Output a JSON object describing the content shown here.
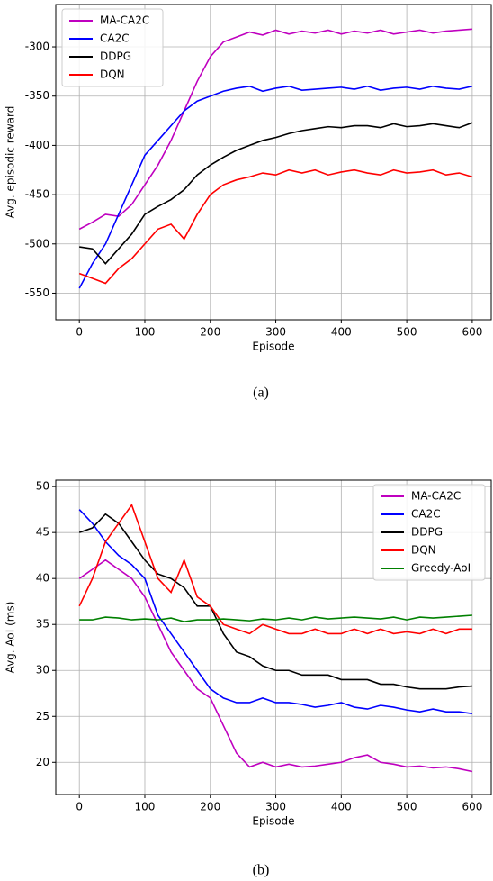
{
  "chart_data": [
    {
      "type": "line",
      "caption": "(a)",
      "x_label": "Episode",
      "y_label": "Avg. episodic reward",
      "x": [
        0,
        20,
        40,
        60,
        80,
        100,
        120,
        140,
        160,
        180,
        200,
        220,
        240,
        260,
        280,
        300,
        320,
        340,
        360,
        380,
        400,
        420,
        440,
        460,
        480,
        500,
        520,
        540,
        560,
        580,
        600
      ],
      "xlim": [
        -36,
        629
      ],
      "xticks": [
        0,
        100,
        200,
        300,
        400,
        500,
        600
      ],
      "ylim": [
        -577,
        -257
      ],
      "yticks": [
        -550,
        -500,
        -450,
        -400,
        -350,
        -300
      ],
      "grid": true,
      "legend": "upper left",
      "series": [
        {
          "name": "MA-CA2C",
          "color": "#bf00bf",
          "values": [
            -485,
            -478,
            -470,
            -472,
            -460,
            -440,
            -420,
            -395,
            -365,
            -335,
            -310,
            -295,
            -290,
            -285,
            -288,
            -283,
            -287,
            -284,
            -286,
            -283,
            -287,
            -284,
            -286,
            -283,
            -287,
            -285,
            -283,
            -286,
            -284,
            -283,
            -282
          ]
        },
        {
          "name": "CA2C",
          "color": "#0000ff",
          "values": [
            -545,
            -520,
            -500,
            -470,
            -440,
            -410,
            -395,
            -380,
            -365,
            -355,
            -350,
            -345,
            -342,
            -340,
            -345,
            -342,
            -340,
            -344,
            -343,
            -342,
            -341,
            -343,
            -340,
            -344,
            -342,
            -341,
            -343,
            -340,
            -342,
            -343,
            -340
          ]
        },
        {
          "name": "DDPG",
          "color": "#000000",
          "values": [
            -503,
            -505,
            -520,
            -505,
            -490,
            -470,
            -462,
            -455,
            -445,
            -430,
            -420,
            -412,
            -405,
            -400,
            -395,
            -392,
            -388,
            -385,
            -383,
            -381,
            -382,
            -380,
            -380,
            -382,
            -378,
            -381,
            -380,
            -378,
            -380,
            -382,
            -377
          ]
        },
        {
          "name": "DQN",
          "color": "#ff0000",
          "values": [
            -530,
            -535,
            -540,
            -525,
            -515,
            -500,
            -485,
            -480,
            -495,
            -470,
            -450,
            -440,
            -435,
            -432,
            -428,
            -430,
            -425,
            -428,
            -425,
            -430,
            -427,
            -425,
            -428,
            -430,
            -425,
            -428,
            -427,
            -425,
            -430,
            -428,
            -432
          ]
        }
      ]
    },
    {
      "type": "line",
      "caption": "(b)",
      "x_label": "Episode",
      "y_label": "Avg. AoI (ms)",
      "x": [
        0,
        20,
        40,
        60,
        80,
        100,
        120,
        140,
        160,
        180,
        200,
        220,
        240,
        260,
        280,
        300,
        320,
        340,
        360,
        380,
        400,
        420,
        440,
        460,
        480,
        500,
        520,
        540,
        560,
        580,
        600
      ],
      "xlim": [
        -36,
        629
      ],
      "xticks": [
        0,
        100,
        200,
        300,
        400,
        500,
        600
      ],
      "ylim": [
        16.5,
        50.7
      ],
      "yticks": [
        20,
        25,
        30,
        35,
        40,
        45,
        50
      ],
      "grid": true,
      "legend": "upper right",
      "series": [
        {
          "name": "MA-CA2C",
          "color": "#bf00bf",
          "values": [
            40,
            41,
            42,
            41,
            40,
            38,
            35,
            32,
            30,
            28,
            27,
            24,
            21,
            19.5,
            20,
            19.5,
            19.8,
            19.5,
            19.6,
            19.8,
            20,
            20.5,
            20.8,
            20,
            19.8,
            19.5,
            19.6,
            19.4,
            19.5,
            19.3,
            19
          ]
        },
        {
          "name": "CA2C",
          "color": "#0000ff",
          "values": [
            47.5,
            46,
            44,
            42.5,
            41.5,
            40,
            36,
            34,
            32,
            30,
            28,
            27,
            26.5,
            26.5,
            27,
            26.5,
            26.5,
            26.3,
            26,
            26.2,
            26.5,
            26,
            25.8,
            26.2,
            26,
            25.7,
            25.5,
            25.8,
            25.5,
            25.5,
            25.3
          ]
        },
        {
          "name": "DDPG",
          "color": "#000000",
          "values": [
            45,
            45.5,
            47,
            46,
            44,
            42,
            40.5,
            40,
            39,
            37,
            37,
            34,
            32,
            31.5,
            30.5,
            30,
            30,
            29.5,
            29.5,
            29.5,
            29,
            29,
            29,
            28.5,
            28.5,
            28.2,
            28,
            28,
            28,
            28.2,
            28.3
          ]
        },
        {
          "name": "DQN",
          "color": "#ff0000",
          "values": [
            37,
            40,
            44,
            46,
            48,
            44,
            40,
            38.5,
            42,
            38,
            37,
            35,
            34.5,
            34,
            35,
            34.5,
            34,
            34,
            34.5,
            34,
            34,
            34.5,
            34,
            34.5,
            34,
            34.2,
            34,
            34.5,
            34,
            34.5,
            34.5
          ]
        },
        {
          "name": "Greedy-AoI",
          "color": "#008000",
          "values": [
            35.5,
            35.5,
            35.8,
            35.7,
            35.5,
            35.6,
            35.5,
            35.7,
            35.3,
            35.5,
            35.5,
            35.6,
            35.5,
            35.4,
            35.6,
            35.5,
            35.7,
            35.5,
            35.8,
            35.6,
            35.7,
            35.8,
            35.7,
            35.6,
            35.8,
            35.5,
            35.8,
            35.7,
            35.8,
            35.9,
            36
          ]
        }
      ]
    }
  ]
}
